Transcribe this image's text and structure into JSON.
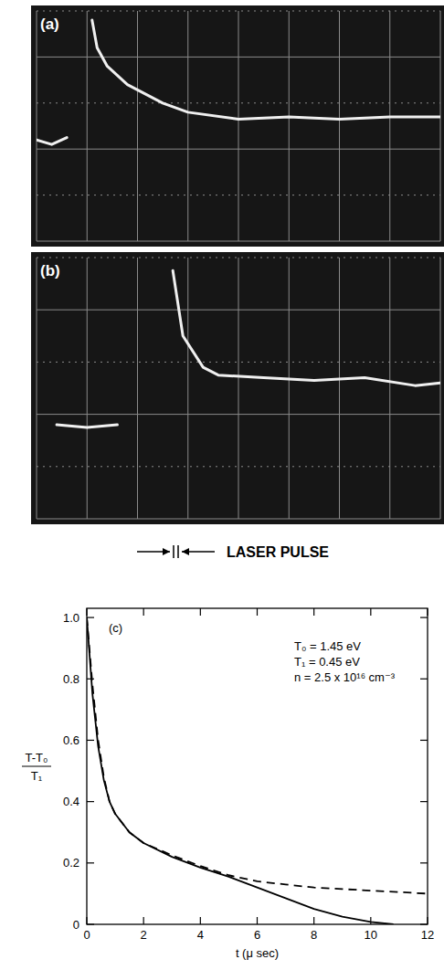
{
  "chart_data": [
    {
      "type": "line",
      "title": "(a)",
      "xlim": [
        0,
        8
      ],
      "ylim": [
        0,
        5
      ],
      "xticks": [
        0,
        1,
        2,
        3,
        4,
        5,
        6,
        7,
        8
      ],
      "yticks": [
        0,
        1,
        2,
        3,
        4,
        5
      ],
      "grid": true,
      "tick_labels": false,
      "x": [
        0,
        0.3,
        0.6,
        1.0,
        1.1,
        1.2,
        1.4,
        1.8,
        2.5,
        3.0,
        4.0,
        5.0,
        6.0,
        7.0,
        8.0
      ],
      "series": [
        {
          "color": "#f0f0f0",
          "line_style": "solid",
          "values": [
            2.2,
            2.1,
            2.25,
            null,
            4.8,
            4.2,
            3.8,
            3.4,
            3.0,
            2.8,
            2.65,
            2.7,
            2.65,
            2.7,
            2.7
          ]
        }
      ]
    },
    {
      "type": "line",
      "title": "(b)",
      "xlim": [
        0,
        8
      ],
      "ylim": [
        0,
        5
      ],
      "xticks": [
        0,
        1,
        2,
        3,
        4,
        5,
        6,
        7,
        8
      ],
      "yticks": [
        0,
        1,
        2,
        3,
        4,
        5
      ],
      "grid": true,
      "tick_labels": false,
      "annotations": [
        "LASER PULSE"
      ],
      "x": [
        0.4,
        1.0,
        1.6,
        2.4,
        2.7,
        2.9,
        3.3,
        3.6,
        4.5,
        5.5,
        6.5,
        7.5,
        8.0
      ],
      "series": [
        {
          "color": "#f0f0f0",
          "line_style": "solid",
          "values": [
            1.8,
            1.75,
            1.8,
            null,
            4.75,
            3.5,
            2.9,
            2.75,
            2.7,
            2.65,
            2.7,
            2.55,
            2.6
          ]
        }
      ]
    },
    {
      "type": "line",
      "title": "(c)",
      "xlabel": "t (μ sec)",
      "ylabel": {
        "numerator": "T-T₀",
        "denominator": "T₁"
      },
      "annotations": [
        "T₀ = 1.45 eV",
        "T₁ = 0.45 eV",
        "n = 2.5 x 10¹⁶ cm⁻³"
      ],
      "xlim": [
        0,
        12
      ],
      "ylim": [
        0,
        1.03
      ],
      "xticks": [
        0,
        2,
        4,
        6,
        8,
        10,
        12
      ],
      "yticks": [
        0,
        0.2,
        0.4,
        0.6,
        0.8,
        {
          "value": 1,
          "label": "1.0"
        }
      ],
      "grid": false,
      "series": [
        {
          "color": "#000000",
          "line_style": "solid",
          "x": [
            0,
            0.2,
            0.4,
            0.6,
            0.8,
            1,
            1.5,
            2,
            3,
            4,
            5,
            6,
            7,
            8,
            9,
            10,
            10.8
          ],
          "values": [
            1.0,
            0.75,
            0.58,
            0.47,
            0.4,
            0.36,
            0.3,
            0.265,
            0.22,
            0.185,
            0.155,
            0.12,
            0.085,
            0.05,
            0.025,
            0.008,
            0
          ]
        },
        {
          "color": "#000000",
          "line_style": "dashed",
          "x": [
            0,
            0.2,
            0.4,
            0.6,
            0.8,
            1,
            1.5,
            2,
            3,
            4,
            5,
            6,
            7,
            8,
            9,
            10,
            11,
            12
          ],
          "values": [
            1.0,
            0.78,
            0.6,
            0.48,
            0.4,
            0.36,
            0.3,
            0.265,
            0.225,
            0.19,
            0.16,
            0.14,
            0.13,
            0.12,
            0.115,
            0.11,
            0.105,
            0.1
          ]
        }
      ]
    }
  ]
}
